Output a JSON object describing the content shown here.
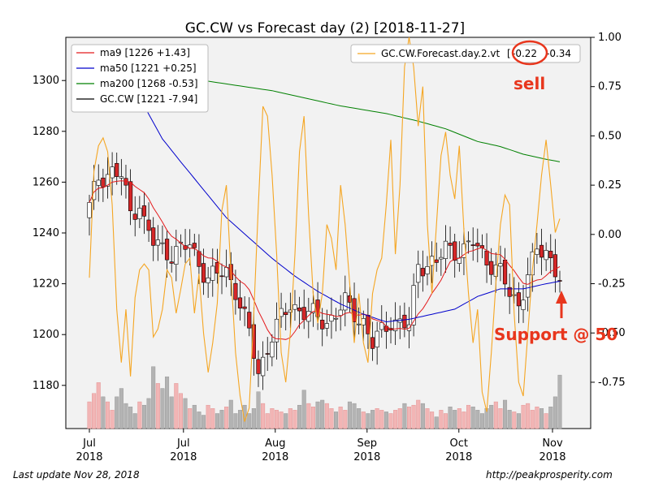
{
  "footer": {
    "last_update": "Last update Nov 28, 2018",
    "url": "http://peakprosperity.com"
  },
  "chart_data": {
    "type": "line",
    "title": "GC.CW vs Forecast day (2)  [2018-11-27]",
    "grid": false,
    "background": "#f2f2f2",
    "left_axis": {
      "ylim": [
        1163,
        1317
      ],
      "ticks": [
        1180,
        1200,
        1220,
        1240,
        1260,
        1280,
        1300
      ]
    },
    "right_axis": {
      "ylim": [
        -0.985,
        1.0
      ],
      "ticks": [
        "1.00",
        "0.75",
        "0.50",
        "0.25",
        "0.00",
        "-0.25",
        "-0.50",
        "-0.75"
      ]
    },
    "x_axis": {
      "n": 104,
      "ticks": [
        {
          "line1": "Jul",
          "line2": "2018",
          "i": 0
        },
        {
          "line1": "Jul",
          "line2": "2018",
          "i": 20.6
        },
        {
          "line1": "Aug",
          "line2": "2018",
          "i": 40.7
        },
        {
          "line1": "Sep",
          "line2": "2018",
          "i": 60.8
        },
        {
          "line1": "Oct",
          "line2": "2018",
          "i": 80.9
        },
        {
          "line1": "Nov",
          "line2": "2018",
          "i": 101.4
        }
      ]
    },
    "series": [
      {
        "name": "ma9 [1226 +1.43]",
        "color": "#e41a1c"
      },
      {
        "name": "ma50 [1221 +0.25]",
        "color": "#0000cc"
      },
      {
        "name": "ma200 [1268 -0.53]",
        "color": "#008000"
      },
      {
        "name": "GC.CW [1221 -7.94]",
        "color": "#000000"
      }
    ],
    "forecast": {
      "legend": "GC.CW.Forecast.day.2.vt",
      "legend_value": "-0.22",
      "legend_value2": "-0.34",
      "color": "#f5a623"
    },
    "ohlc_anchors": [
      [
        0,
        1250
      ],
      [
        2,
        1262
      ],
      [
        5,
        1264
      ],
      [
        7,
        1262
      ],
      [
        9,
        1248
      ],
      [
        11,
        1252
      ],
      [
        12,
        1244
      ],
      [
        14,
        1236
      ],
      [
        18,
        1232
      ],
      [
        22,
        1235
      ],
      [
        26,
        1222
      ],
      [
        30,
        1225
      ],
      [
        32,
        1218
      ],
      [
        35,
        1200
      ],
      [
        37,
        1185
      ],
      [
        40,
        1200
      ],
      [
        44,
        1212
      ],
      [
        48,
        1208
      ],
      [
        52,
        1205
      ],
      [
        56,
        1212
      ],
      [
        60,
        1205
      ],
      [
        62,
        1196
      ],
      [
        66,
        1206
      ],
      [
        70,
        1203
      ],
      [
        72,
        1228
      ],
      [
        76,
        1228
      ],
      [
        78,
        1234
      ],
      [
        82,
        1233
      ],
      [
        84,
        1236
      ],
      [
        86,
        1232
      ],
      [
        88,
        1228
      ],
      [
        90,
        1224
      ],
      [
        92,
        1216
      ],
      [
        94,
        1212
      ],
      [
        96,
        1224
      ],
      [
        98,
        1232
      ],
      [
        100,
        1233
      ],
      [
        102,
        1226
      ],
      [
        103,
        1221
      ]
    ],
    "ma50_anchors": [
      [
        12,
        1290
      ],
      [
        16,
        1277
      ],
      [
        20,
        1268
      ],
      [
        25,
        1257
      ],
      [
        30,
        1246
      ],
      [
        35,
        1238
      ],
      [
        40,
        1230
      ],
      [
        45,
        1223
      ],
      [
        50,
        1217
      ],
      [
        55,
        1212
      ],
      [
        60,
        1208
      ],
      [
        65,
        1205
      ],
      [
        70,
        1206
      ],
      [
        75,
        1208
      ],
      [
        80,
        1210
      ],
      [
        85,
        1215
      ],
      [
        90,
        1218
      ],
      [
        95,
        1218
      ],
      [
        100,
        1220
      ],
      [
        103,
        1221
      ]
    ],
    "ma200_anchors": [
      [
        25,
        1300
      ],
      [
        40,
        1296
      ],
      [
        55,
        1290
      ],
      [
        65,
        1287
      ],
      [
        72,
        1284
      ],
      [
        78,
        1281
      ],
      [
        85,
        1276
      ],
      [
        90,
        1274
      ],
      [
        95,
        1271
      ],
      [
        100,
        1269
      ],
      [
        103,
        1268
      ]
    ],
    "forecast_values": [
      -0.22,
      0.32,
      0.45,
      0.49,
      0.42,
      0.15,
      -0.38,
      -0.65,
      -0.38,
      -0.72,
      -0.32,
      -0.18,
      -0.15,
      -0.18,
      -0.52,
      -0.48,
      -0.38,
      -0.18,
      -0.22,
      -0.4,
      -0.28,
      -0.15,
      -0.12,
      -0.4,
      -0.2,
      -0.5,
      -0.7,
      -0.55,
      -0.35,
      0.12,
      0.25,
      -0.2,
      -0.6,
      -0.82,
      -0.95,
      -0.88,
      -0.4,
      0.15,
      0.65,
      0.6,
      0.3,
      -0.1,
      -0.6,
      -0.75,
      -0.5,
      -0.1,
      0.42,
      0.6,
      0.1,
      -0.3,
      -0.45,
      -0.3,
      0.05,
      -0.02,
      -0.18,
      0.25,
      0.05,
      -0.25,
      -0.55,
      -0.3,
      -0.55,
      -0.65,
      -0.3,
      -0.18,
      -0.12,
      0.15,
      0.48,
      -0.1,
      0.25,
      0.85,
      1.0,
      0.85,
      0.55,
      0.75,
      0.05,
      -0.3,
      0.05,
      0.4,
      0.52,
      0.3,
      0.18,
      0.45,
      0.02,
      -0.3,
      -0.55,
      -0.38,
      -0.8,
      -0.9,
      -0.6,
      -0.25,
      0.05,
      0.2,
      0.15,
      -0.4,
      -0.75,
      -0.82,
      -0.5,
      -0.18,
      0.05,
      0.3,
      0.48,
      0.25,
      0.01,
      0.08
    ],
    "volume": [
      0.32,
      0.42,
      0.55,
      0.38,
      0.32,
      0.22,
      0.38,
      0.48,
      0.3,
      0.26,
      0.18,
      0.32,
      0.28,
      0.36,
      0.74,
      0.54,
      0.48,
      0.62,
      0.38,
      0.54,
      0.42,
      0.36,
      0.24,
      0.28,
      0.2,
      0.16,
      0.28,
      0.24,
      0.18,
      0.22,
      0.26,
      0.34,
      0.18,
      0.22,
      0.28,
      0.18,
      0.24,
      0.44,
      0.3,
      0.18,
      0.24,
      0.22,
      0.2,
      0.18,
      0.24,
      0.22,
      0.28,
      0.46,
      0.3,
      0.26,
      0.32,
      0.34,
      0.3,
      0.24,
      0.2,
      0.26,
      0.22,
      0.32,
      0.3,
      0.24,
      0.2,
      0.18,
      0.22,
      0.24,
      0.22,
      0.2,
      0.18,
      0.22,
      0.24,
      0.3,
      0.26,
      0.28,
      0.34,
      0.3,
      0.24,
      0.2,
      0.14,
      0.22,
      0.18,
      0.26,
      0.22,
      0.24,
      0.2,
      0.28,
      0.26,
      0.22,
      0.18,
      0.24,
      0.28,
      0.32,
      0.24,
      0.34,
      0.22,
      0.2,
      0.18,
      0.28,
      0.3,
      0.22,
      0.26,
      0.24,
      0.18,
      0.26,
      0.38,
      0.64
    ],
    "annotations": {
      "sell": "sell",
      "support": "Support @ 50",
      "color": "#e8361d"
    }
  }
}
